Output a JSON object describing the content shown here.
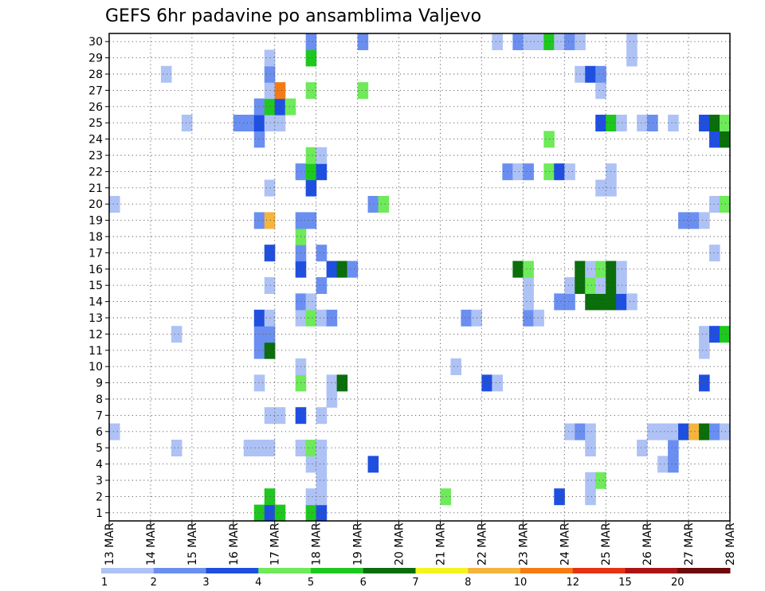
{
  "chart_data": {
    "type": "heatmap",
    "title": "GEFS 6hr padavine po ansamblima Valjevo",
    "x_tick_labels": [
      "13 MAR",
      "14 MAR",
      "15 MAR",
      "16 MAR",
      "17 MAR",
      "18 MAR",
      "19 MAR",
      "20 MAR",
      "21 MAR",
      "22 MAR",
      "23 MAR",
      "24 MAR",
      "25 MAR",
      "26 MAR",
      "27 MAR",
      "28 MAR"
    ],
    "y_tick_labels": [
      "1",
      "2",
      "3",
      "4",
      "5",
      "6",
      "7",
      "8",
      "9",
      "10",
      "11",
      "12",
      "13",
      "14",
      "15",
      "16",
      "17",
      "18",
      "19",
      "20",
      "21",
      "22",
      "23",
      "24",
      "25",
      "26",
      "27",
      "28",
      "29",
      "30"
    ],
    "x_range_days": [
      0,
      15
    ],
    "step_hours": 6,
    "grid": "dotted",
    "colorbar": {
      "labels": [
        "1",
        "2",
        "3",
        "4",
        "5",
        "6",
        "7",
        "8",
        "10",
        "12",
        "15",
        "20"
      ],
      "colors": [
        "#aec2f5",
        "#6a8ff0",
        "#1f4fe0",
        "#6eea5a",
        "#1ec81e",
        "#0a6e0a",
        "#f5f51e",
        "#f5b43c",
        "#f57a14",
        "#e63214",
        "#aa1414",
        "#6e0a0a"
      ]
    },
    "cells": [
      [
        1,
        14,
        5
      ],
      [
        1,
        15,
        3
      ],
      [
        1,
        16,
        5
      ],
      [
        1,
        19,
        5
      ],
      [
        1,
        20,
        3
      ],
      [
        2,
        15,
        5
      ],
      [
        2,
        19,
        1
      ],
      [
        2,
        20,
        1
      ],
      [
        2,
        32,
        4
      ],
      [
        2,
        43,
        3
      ],
      [
        2,
        46,
        1
      ],
      [
        3,
        20,
        1
      ],
      [
        3,
        46,
        1
      ],
      [
        3,
        47,
        4
      ],
      [
        4,
        19,
        1
      ],
      [
        4,
        20,
        1
      ],
      [
        4,
        25,
        3
      ],
      [
        4,
        53,
        1
      ],
      [
        4,
        54,
        2
      ],
      [
        5,
        6,
        1
      ],
      [
        5,
        13,
        1
      ],
      [
        5,
        14,
        1
      ],
      [
        5,
        15,
        1
      ],
      [
        5,
        18,
        1
      ],
      [
        5,
        19,
        4
      ],
      [
        5,
        20,
        1
      ],
      [
        5,
        46,
        1
      ],
      [
        5,
        51,
        1
      ],
      [
        5,
        54,
        2
      ],
      [
        6,
        0,
        1
      ],
      [
        6,
        44,
        1
      ],
      [
        6,
        45,
        2
      ],
      [
        6,
        46,
        1
      ],
      [
        6,
        52,
        1
      ],
      [
        6,
        53,
        1
      ],
      [
        6,
        54,
        1
      ],
      [
        6,
        55,
        3
      ],
      [
        6,
        56,
        8
      ],
      [
        6,
        57,
        6
      ],
      [
        6,
        58,
        2
      ],
      [
        6,
        59,
        1
      ],
      [
        7,
        15,
        1
      ],
      [
        7,
        16,
        1
      ],
      [
        7,
        18,
        3
      ],
      [
        7,
        20,
        1
      ],
      [
        8,
        21,
        1
      ],
      [
        9,
        14,
        1
      ],
      [
        9,
        18,
        4
      ],
      [
        9,
        21,
        1
      ],
      [
        9,
        22,
        6
      ],
      [
        9,
        36,
        3
      ],
      [
        9,
        37,
        1
      ],
      [
        9,
        57,
        3
      ],
      [
        9,
        64,
        4
      ],
      [
        10,
        18,
        1
      ],
      [
        10,
        33,
        1
      ],
      [
        11,
        14,
        2
      ],
      [
        11,
        15,
        2
      ],
      [
        11,
        15,
        6
      ],
      [
        11,
        57,
        1
      ],
      [
        11,
        66,
        1
      ],
      [
        12,
        6,
        1
      ],
      [
        12,
        14,
        2
      ],
      [
        12,
        15,
        2
      ],
      [
        12,
        57,
        1
      ],
      [
        12,
        58,
        3
      ],
      [
        12,
        59,
        5
      ],
      [
        12,
        60,
        5
      ],
      [
        12,
        61,
        5
      ],
      [
        12,
        62,
        1
      ],
      [
        13,
        14,
        3
      ],
      [
        13,
        15,
        1
      ],
      [
        13,
        18,
        1
      ],
      [
        13,
        19,
        4
      ],
      [
        13,
        20,
        1
      ],
      [
        13,
        21,
        2
      ],
      [
        13,
        34,
        2
      ],
      [
        13,
        35,
        1
      ],
      [
        13,
        40,
        2
      ],
      [
        13,
        41,
        1
      ],
      [
        13,
        63,
        1
      ],
      [
        13,
        64,
        3
      ],
      [
        13,
        66,
        6
      ],
      [
        13,
        67,
        3
      ],
      [
        14,
        18,
        2
      ],
      [
        14,
        19,
        1
      ],
      [
        14,
        40,
        1
      ],
      [
        14,
        43,
        2
      ],
      [
        14,
        44,
        2
      ],
      [
        14,
        46,
        6
      ],
      [
        14,
        47,
        6
      ],
      [
        14,
        48,
        6
      ],
      [
        14,
        49,
        3
      ],
      [
        14,
        50,
        1
      ],
      [
        15,
        15,
        1
      ],
      [
        15,
        20,
        2
      ],
      [
        15,
        40,
        1
      ],
      [
        15,
        44,
        1
      ],
      [
        15,
        45,
        6
      ],
      [
        15,
        46,
        4
      ],
      [
        15,
        47,
        1
      ],
      [
        15,
        48,
        6
      ],
      [
        15,
        49,
        1
      ],
      [
        16,
        18,
        3
      ],
      [
        16,
        21,
        3
      ],
      [
        16,
        22,
        6
      ],
      [
        16,
        23,
        2
      ],
      [
        16,
        39,
        6
      ],
      [
        16,
        40,
        4
      ],
      [
        16,
        45,
        6
      ],
      [
        16,
        46,
        1
      ],
      [
        16,
        47,
        4
      ],
      [
        16,
        48,
        6
      ],
      [
        16,
        49,
        1
      ],
      [
        17,
        15,
        3
      ],
      [
        17,
        18,
        2
      ],
      [
        17,
        20,
        2
      ],
      [
        17,
        58,
        1
      ],
      [
        18,
        18,
        4
      ],
      [
        19,
        14,
        2
      ],
      [
        19,
        15,
        8
      ],
      [
        19,
        18,
        2
      ],
      [
        19,
        19,
        2
      ],
      [
        19,
        55,
        2
      ],
      [
        19,
        56,
        2
      ],
      [
        19,
        57,
        1
      ],
      [
        20,
        0,
        1
      ],
      [
        20,
        25,
        2
      ],
      [
        20,
        26,
        4
      ],
      [
        20,
        58,
        1
      ],
      [
        20,
        59,
        4
      ],
      [
        20,
        60,
        2
      ],
      [
        20,
        66,
        1
      ],
      [
        21,
        15,
        1
      ],
      [
        21,
        19,
        3
      ],
      [
        21,
        47,
        1
      ],
      [
        21,
        48,
        1
      ],
      [
        22,
        18,
        2
      ],
      [
        22,
        19,
        5
      ],
      [
        22,
        20,
        3
      ],
      [
        22,
        38,
        2
      ],
      [
        22,
        39,
        1
      ],
      [
        22,
        40,
        2
      ],
      [
        22,
        42,
        4
      ],
      [
        22,
        43,
        3
      ],
      [
        22,
        44,
        1
      ],
      [
        22,
        48,
        1
      ],
      [
        22,
        66,
        1
      ],
      [
        23,
        19,
        4
      ],
      [
        23,
        20,
        1
      ],
      [
        24,
        14,
        2
      ],
      [
        24,
        42,
        4
      ],
      [
        24,
        58,
        3
      ],
      [
        24,
        59,
        6
      ],
      [
        24,
        60,
        5
      ],
      [
        24,
        61,
        4
      ],
      [
        24,
        62,
        1
      ],
      [
        24,
        64,
        3
      ],
      [
        24,
        65,
        5
      ],
      [
        24,
        66,
        7
      ],
      [
        25,
        7,
        1
      ],
      [
        25,
        12,
        2
      ],
      [
        25,
        13,
        2
      ],
      [
        25,
        14,
        3
      ],
      [
        25,
        15,
        1
      ],
      [
        25,
        16,
        1
      ],
      [
        25,
        47,
        3
      ],
      [
        25,
        48,
        5
      ],
      [
        25,
        49,
        1
      ],
      [
        25,
        51,
        1
      ],
      [
        25,
        52,
        2
      ],
      [
        25,
        54,
        1
      ],
      [
        25,
        57,
        3
      ],
      [
        25,
        58,
        6
      ],
      [
        25,
        59,
        4
      ],
      [
        25,
        60,
        4
      ],
      [
        25,
        61,
        5
      ],
      [
        25,
        62,
        4
      ],
      [
        25,
        63,
        1
      ],
      [
        25,
        64,
        1
      ],
      [
        25,
        65,
        6
      ],
      [
        25,
        66,
        4
      ],
      [
        26,
        14,
        2
      ],
      [
        26,
        15,
        5
      ],
      [
        26,
        16,
        3
      ],
      [
        26,
        17,
        4
      ],
      [
        26,
        65,
        1
      ],
      [
        26,
        66,
        1
      ],
      [
        27,
        15,
        1
      ],
      [
        27,
        16,
        9
      ],
      [
        27,
        19,
        4
      ],
      [
        27,
        24,
        4
      ],
      [
        27,
        47,
        1
      ],
      [
        27,
        66,
        1
      ],
      [
        28,
        5,
        1
      ],
      [
        28,
        15,
        2
      ],
      [
        28,
        45,
        1
      ],
      [
        28,
        46,
        3
      ],
      [
        28,
        47,
        2
      ],
      [
        29,
        15,
        1
      ],
      [
        29,
        19,
        5
      ],
      [
        29,
        50,
        1
      ],
      [
        30,
        19,
        2
      ],
      [
        30,
        24,
        2
      ],
      [
        30,
        37,
        1
      ],
      [
        30,
        39,
        2
      ],
      [
        30,
        40,
        1
      ],
      [
        30,
        41,
        1
      ],
      [
        30,
        42,
        5
      ],
      [
        30,
        43,
        1
      ],
      [
        30,
        44,
        2
      ],
      [
        30,
        45,
        1
      ],
      [
        30,
        50,
        1
      ]
    ]
  }
}
